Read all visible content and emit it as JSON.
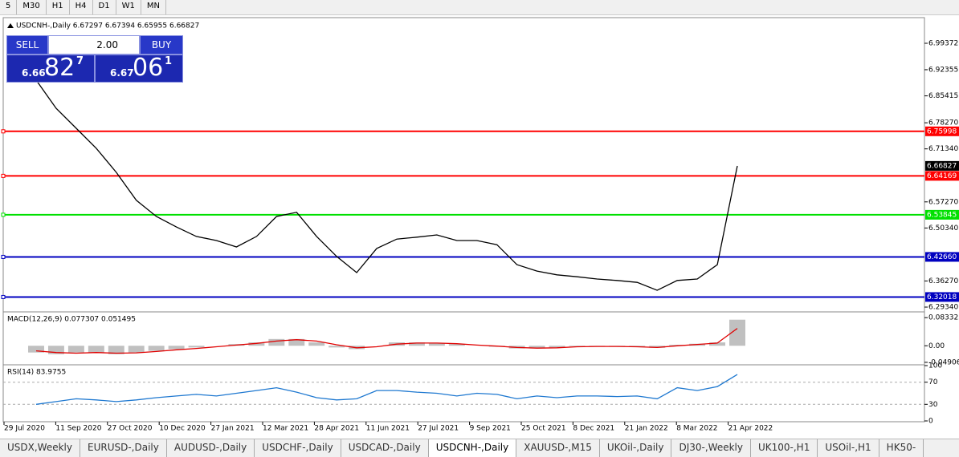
{
  "toolbar": [
    "5",
    "M30",
    "H1",
    "H4",
    "D1",
    "W1",
    "MN"
  ],
  "header": "USDCNH-,Daily  6.67297 6.67394 6.65955 6.66827",
  "trade_panel": {
    "sell": "SELL",
    "lot": "2.00",
    "buy": "BUY",
    "bid": {
      "big": "6.66",
      "main": "82",
      "small": "7"
    },
    "ask": {
      "big": "6.67",
      "main": "06",
      "small": "1"
    }
  },
  "chart_data": [
    {
      "type": "line",
      "color": "#000000",
      "ylim": [
        6.2828,
        7.0618
      ],
      "yticks": [
        6.99372,
        6.92355,
        6.85415,
        {
          "value": 6.7827,
          "label": "6.78270"
        },
        {
          "value": 6.7134,
          "label": "6.71340"
        },
        {
          "value": 6.5727,
          "label": "6.57270"
        },
        {
          "value": 6.5034,
          "label": "6.50340"
        },
        {
          "value": 6.3627,
          "label": "6.36270"
        },
        {
          "value": 6.2934,
          "label": "6.29340"
        }
      ],
      "levels": [
        {
          "value": 6.75998,
          "color": "#ff0000"
        },
        {
          "value": 6.64169,
          "color": "#ff0000"
        },
        {
          "value": 6.53845,
          "color": "#00e000"
        },
        {
          "value": 6.4266,
          "label": "6.42660",
          "color": "#0000c0"
        },
        {
          "value": 6.32018,
          "color": "#0000c0"
        }
      ],
      "current": 6.66827,
      "x_labels": [
        "29 Jul 2020",
        "11 Sep 2020",
        "27 Oct 2020",
        "10 Dec 2020",
        "27 Jan 2021",
        "12 Mar 2021",
        "28 Apr 2021",
        "11 Jun 2021",
        "27 Jul 2021",
        "9 Sep 2021",
        "25 Oct 2021",
        "8 Dec 2021",
        "21 Jan 2022",
        "8 Mar 2022",
        "21 Apr 2022"
      ],
      "values": [
        6.896,
        6.821,
        6.768,
        6.715,
        6.651,
        6.577,
        6.534,
        6.506,
        6.481,
        6.47,
        6.453,
        6.481,
        6.534,
        6.545,
        6.481,
        6.428,
        6.385,
        6.449,
        6.474,
        6.479,
        6.485,
        6.47,
        6.47,
        6.459,
        6.406,
        6.389,
        6.379,
        6.374,
        6.368,
        6.364,
        6.359,
        6.338,
        6.364,
        6.368,
        6.406,
        6.668
      ]
    },
    {
      "type": "bar",
      "title": "MACD(12,26,9) 0.077307 0.051495",
      "color": "#c0c0c0",
      "ylim": [
        -0.054,
        0.098
      ],
      "yticks": [
        0.083325,
        {
          "value": 0,
          "label": "0.00"
        },
        -0.049068
      ],
      "values": [
        -0.02,
        -0.025,
        -0.02,
        -0.02,
        -0.025,
        -0.02,
        -0.015,
        -0.01,
        -0.005,
        0.0,
        0.005,
        0.01,
        0.02,
        0.02,
        0.01,
        -0.005,
        -0.01,
        0.0,
        0.01,
        0.01,
        0.008,
        0.005,
        0.0,
        -0.003,
        -0.008,
        -0.008,
        -0.005,
        -0.002,
        -0.002,
        -0.002,
        -0.003,
        -0.006,
        0.003,
        0.006,
        0.01,
        0.077307
      ],
      "signal": {
        "color": "#e00000",
        "values": [
          -0.015,
          -0.02,
          -0.022,
          -0.02,
          -0.022,
          -0.021,
          -0.017,
          -0.012,
          -0.008,
          -0.003,
          0.002,
          0.007,
          0.014,
          0.018,
          0.014,
          0.003,
          -0.006,
          -0.003,
          0.005,
          0.008,
          0.008,
          0.006,
          0.002,
          -0.001,
          -0.005,
          -0.007,
          -0.006,
          -0.003,
          -0.002,
          -0.002,
          -0.003,
          -0.005,
          0.0,
          0.004,
          0.008,
          0.051495
        ]
      }
    },
    {
      "type": "line",
      "title": "RSI(14) 83.9755",
      "color": "#1e78d0",
      "ylim": [
        0,
        100
      ],
      "yticks": [
        100,
        70,
        30,
        0
      ],
      "values": [
        30,
        35,
        40,
        38,
        35,
        38,
        42,
        45,
        48,
        45,
        50,
        55,
        60,
        52,
        42,
        38,
        40,
        55,
        55,
        52,
        50,
        45,
        50,
        48,
        40,
        45,
        42,
        45,
        45,
        44,
        45,
        40,
        60,
        55,
        62,
        83.9755
      ]
    }
  ],
  "tabs": [
    "USDX,Weekly",
    "EURUSD-,Daily",
    "AUDUSD-,Daily",
    "USDCHF-,Daily",
    "USDCAD-,Daily",
    "USDCNH-,Daily",
    "XAUUSD-,M15",
    "UKOil-,Daily",
    "DJ30-,Weekly",
    "UK100-,H1",
    "USOil-,H1",
    "HK50-"
  ]
}
